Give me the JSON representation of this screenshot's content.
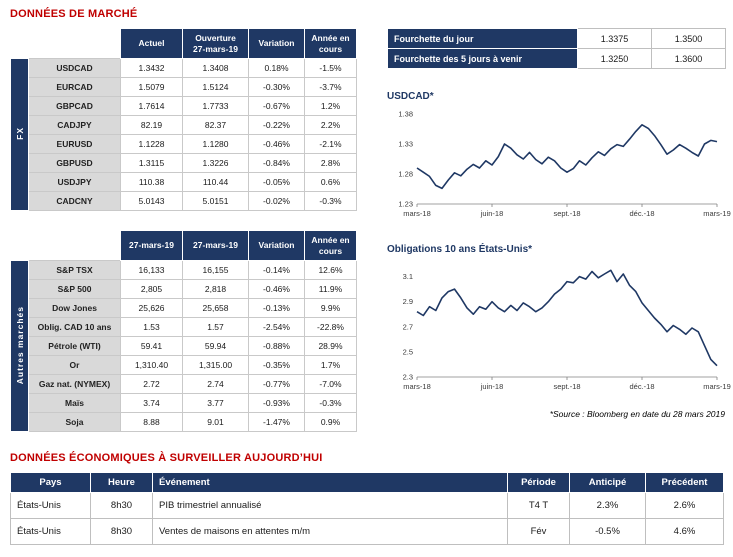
{
  "titles": {
    "market": "DONNÉES DE MARCHÉ",
    "econ": "DONNÉES ÉCONOMIQUES À SURVEILLER AUJOURD’HUI",
    "source": "*Source : Bloomberg en date du  28 mars 2019"
  },
  "colors": {
    "navy": "#1F3864",
    "title_red": "#C00000",
    "positive": "#008000",
    "negative": "#FF0000",
    "label_gray": "#D9D9D9",
    "border": "#C9C9C9"
  },
  "fx_table": {
    "group_label": "FX",
    "headers": [
      "Actuel",
      "Ouverture\n27-mars-19",
      "Variation",
      "Année en\ncours"
    ],
    "rows": [
      [
        "USDCAD",
        "1.3432",
        "1.3408",
        "0.18%",
        "-1.5%"
      ],
      [
        "EURCAD",
        "1.5079",
        "1.5124",
        "-0.30%",
        "-3.7%"
      ],
      [
        "GBPCAD",
        "1.7614",
        "1.7733",
        "-0.67%",
        "1.2%"
      ],
      [
        "CADJPY",
        "82.19",
        "82.37",
        "-0.22%",
        "2.2%"
      ],
      [
        "EURUSD",
        "1.1228",
        "1.1280",
        "-0.46%",
        "-2.1%"
      ],
      [
        "GBPUSD",
        "1.3115",
        "1.3226",
        "-0.84%",
        "2.8%"
      ],
      [
        "USDJPY",
        "110.38",
        "110.44",
        "-0.05%",
        "0.6%"
      ],
      [
        "CADCNY",
        "5.0143",
        "5.0151",
        "-0.02%",
        "-0.3%"
      ]
    ]
  },
  "markets_table": {
    "group_label": "Autres marchés",
    "headers": [
      "27-mars-19",
      "27-mars-19",
      "Variation",
      "Année en\ncours"
    ],
    "rows": [
      [
        "S&P TSX",
        "16,133",
        "16,155",
        "-0.14%",
        "12.6%"
      ],
      [
        "S&P 500",
        "2,805",
        "2,818",
        "-0.46%",
        "11.9%"
      ],
      [
        "Dow Jones",
        "25,626",
        "25,658",
        "-0.13%",
        "9.9%"
      ],
      [
        "Oblig. CAD 10 ans",
        "1.53",
        "1.57",
        "-2.54%",
        "-22.8%"
      ],
      [
        "Pétrole (WTI)",
        "59.41",
        "59.94",
        "-0.88%",
        "28.9%"
      ],
      [
        "Or",
        "1,310.40",
        "1,315.00",
        "-0.35%",
        "1.7%"
      ],
      [
        "Gaz nat. (NYMEX)",
        "2.72",
        "2.74",
        "-0.77%",
        "-7.0%"
      ],
      [
        "Maïs",
        "3.74",
        "3.77",
        "-0.93%",
        "-0.3%"
      ],
      [
        "Soja",
        "8.88",
        "9.01",
        "-1.47%",
        "0.9%"
      ]
    ]
  },
  "range_table": {
    "rows": [
      {
        "label": "Fourchette du jour",
        "low": "1.3375",
        "high": "1.3500"
      },
      {
        "label": "Fourchette des 5 jours à venir",
        "low": "1.3250",
        "high": "1.3600"
      }
    ]
  },
  "chart_data": [
    {
      "type": "line",
      "title": "USDCAD*",
      "xticks": [
        "mars-18",
        "juin-18",
        "sept.-18",
        "déc.-18",
        "mars-19"
      ],
      "yticks": [
        1.23,
        1.28,
        1.33,
        1.38
      ],
      "ytick_labels": [
        "1.23",
        "1.28",
        "1.33",
        "1.38"
      ],
      "ylim": [
        1.23,
        1.385
      ],
      "legend": "none",
      "grid": false,
      "values": [
        1.29,
        1.283,
        1.276,
        1.261,
        1.256,
        1.27,
        1.282,
        1.277,
        1.288,
        1.296,
        1.29,
        1.302,
        1.295,
        1.309,
        1.33,
        1.323,
        1.312,
        1.305,
        1.316,
        1.304,
        1.297,
        1.308,
        1.302,
        1.29,
        1.283,
        1.289,
        1.302,
        1.295,
        1.307,
        1.317,
        1.311,
        1.322,
        1.329,
        1.326,
        1.338,
        1.351,
        1.362,
        1.356,
        1.344,
        1.329,
        1.313,
        1.32,
        1.329,
        1.323,
        1.316,
        1.31,
        1.33,
        1.336,
        1.334
      ]
    },
    {
      "type": "line",
      "title": "Obligations 10 ans États-Unis*",
      "xticks": [
        "mars-18",
        "juin-18",
        "sept.-18",
        "déc.-18",
        "mars-19"
      ],
      "yticks": [
        2.3,
        2.5,
        2.7,
        2.9,
        3.1
      ],
      "ytick_labels": [
        "2.3",
        "2.5",
        "2.7",
        "2.9",
        "3.1"
      ],
      "ylim": [
        2.3,
        3.2
      ],
      "legend": "none",
      "grid": false,
      "values": [
        2.82,
        2.79,
        2.86,
        2.83,
        2.93,
        2.98,
        3.0,
        2.93,
        2.85,
        2.8,
        2.86,
        2.84,
        2.9,
        2.85,
        2.82,
        2.87,
        2.83,
        2.89,
        2.86,
        2.82,
        2.85,
        2.9,
        2.96,
        3.0,
        3.06,
        3.05,
        3.1,
        3.08,
        3.14,
        3.09,
        3.12,
        3.15,
        3.06,
        3.12,
        3.03,
        2.98,
        2.89,
        2.83,
        2.77,
        2.72,
        2.66,
        2.71,
        2.68,
        2.64,
        2.69,
        2.66,
        2.55,
        2.44,
        2.39
      ]
    }
  ],
  "econ_table": {
    "headers": [
      "Pays",
      "Heure",
      "Événement",
      "Période",
      "Anticipé",
      "Précédent"
    ],
    "rows": [
      [
        "États-Unis",
        "8h30",
        "PIB trimestriel annualisé",
        "T4 T",
        "2.3%",
        "2.6%"
      ],
      [
        "États-Unis",
        "8h30",
        "Ventes de maisons en attentes m/m",
        "Fév",
        "-0.5%",
        "4.6%"
      ]
    ]
  }
}
